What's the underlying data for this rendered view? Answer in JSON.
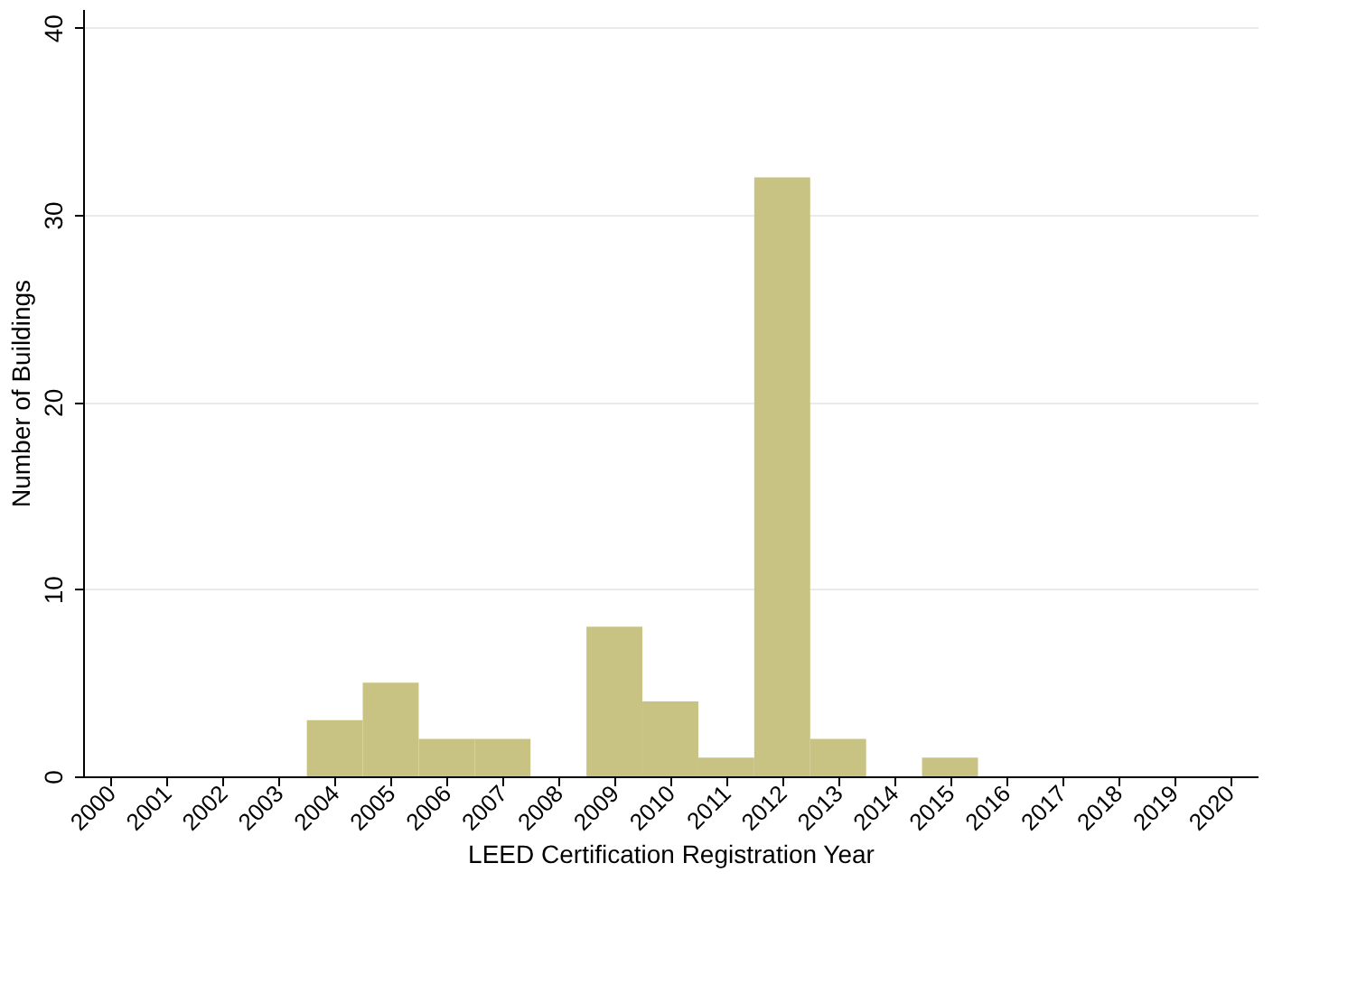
{
  "chart_data": {
    "type": "histogram",
    "xlabel": "LEED Certification Registration Year",
    "ylabel": "Number of Buildings",
    "bins": [
      1999.5,
      2000.5,
      2001.5,
      2002.5,
      2003.5,
      2004.5,
      2005.5,
      2006.5,
      2007.5,
      2008.5,
      2009.5,
      2010.5,
      2011.5,
      2012.5,
      2013.5,
      2014.5,
      2015.5,
      2016.5,
      2017.5,
      2018.5,
      2019.5,
      2020.5
    ],
    "values": [
      0,
      0,
      0,
      0,
      3,
      5,
      2,
      2,
      0,
      8,
      4,
      1,
      32,
      2,
      0,
      1,
      0,
      0,
      0,
      0,
      0
    ],
    "color": "#c8c283",
    "xlim": [
      1999.5,
      2020.5
    ],
    "xticks": [
      2000,
      2001,
      2002,
      2003,
      2004,
      2005,
      2006,
      2007,
      2008,
      2009,
      2010,
      2011,
      2012,
      2013,
      2014,
      2015,
      2016,
      2017,
      2018,
      2019,
      2020
    ],
    "ylim": [
      0,
      41
    ],
    "yticks": [
      0,
      10,
      20,
      30,
      40
    ],
    "grid": "y"
  }
}
